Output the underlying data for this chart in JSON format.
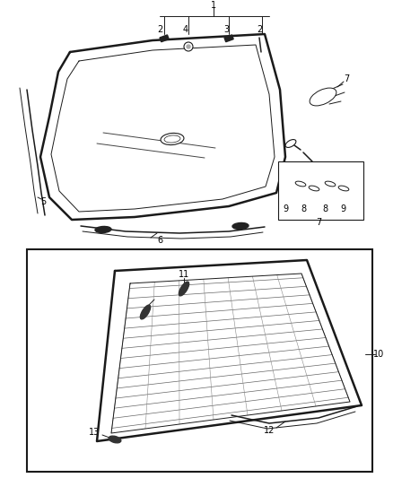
{
  "bg_color": "#ffffff",
  "line_color": "#1a1a1a",
  "fig_width": 4.38,
  "fig_height": 5.33,
  "dpi": 100
}
